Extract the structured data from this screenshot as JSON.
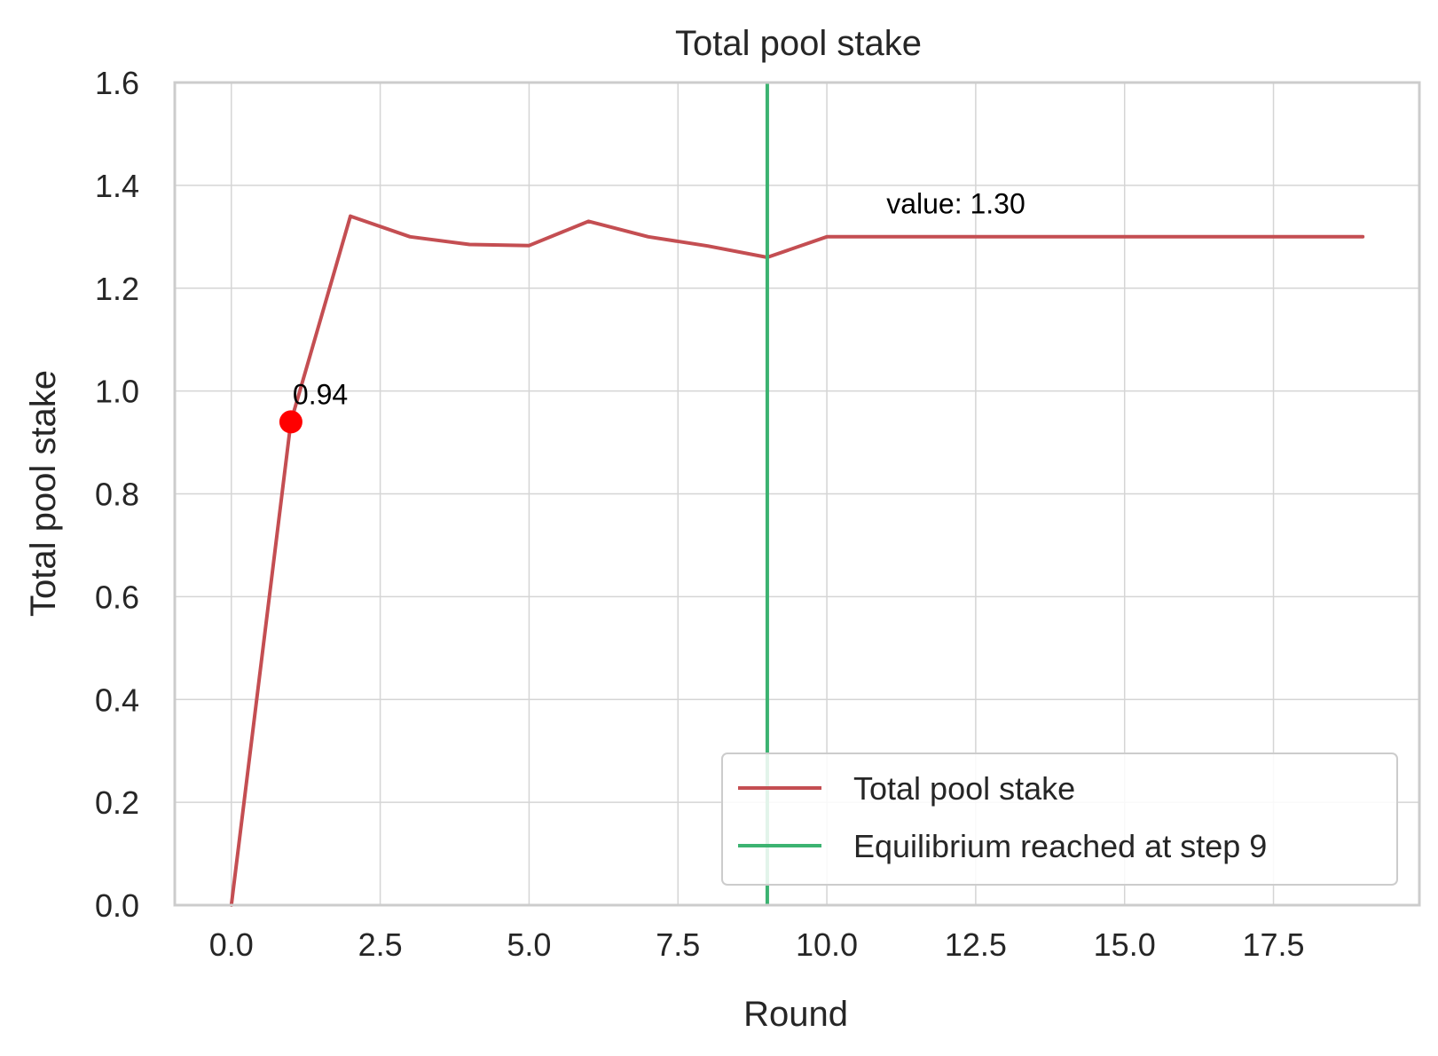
{
  "chart_data": {
    "type": "line",
    "title": "Total pool stake",
    "xlabel": "Round",
    "ylabel": "Total pool stake",
    "xlim": [
      -0.95,
      19.95
    ],
    "ylim": [
      0,
      1.6
    ],
    "xticks": [
      0.0,
      2.5,
      5.0,
      7.5,
      10.0,
      12.5,
      15.0,
      17.5
    ],
    "xtick_labels": [
      "0.0",
      "2.5",
      "5.0",
      "7.5",
      "10.0",
      "12.5",
      "15.0",
      "17.5"
    ],
    "yticks": [
      0.0,
      0.2,
      0.4,
      0.6,
      0.8,
      1.0,
      1.2,
      1.4,
      1.6
    ],
    "ytick_labels": [
      "0.0",
      "0.2",
      "0.4",
      "0.6",
      "0.8",
      "1.0",
      "1.2",
      "1.4",
      "1.6"
    ],
    "grid": true,
    "legend_position": "lower-right",
    "series": [
      {
        "name": "Total pool stake",
        "color": "#c44e52",
        "x": [
          0,
          1,
          2,
          3,
          4,
          5,
          6,
          7,
          8,
          9,
          10,
          11,
          12,
          13,
          14,
          15,
          16,
          17,
          18,
          19
        ],
        "y": [
          0.0,
          0.94,
          1.34,
          1.3,
          1.285,
          1.283,
          1.33,
          1.3,
          1.282,
          1.26,
          1.3,
          1.3,
          1.3,
          1.3,
          1.3,
          1.3,
          1.3,
          1.3,
          1.3,
          1.3
        ]
      }
    ],
    "vlines": [
      {
        "name": "Equilibrium reached at step 9",
        "x": 9,
        "color": "#3cb371"
      }
    ],
    "markers": [
      {
        "x": 1,
        "y": 0.94,
        "color": "#ff0000",
        "label": "0.94"
      }
    ],
    "annotations": [
      {
        "text": "value: 1.30",
        "x": 11.0,
        "y": 1.345
      }
    ]
  }
}
